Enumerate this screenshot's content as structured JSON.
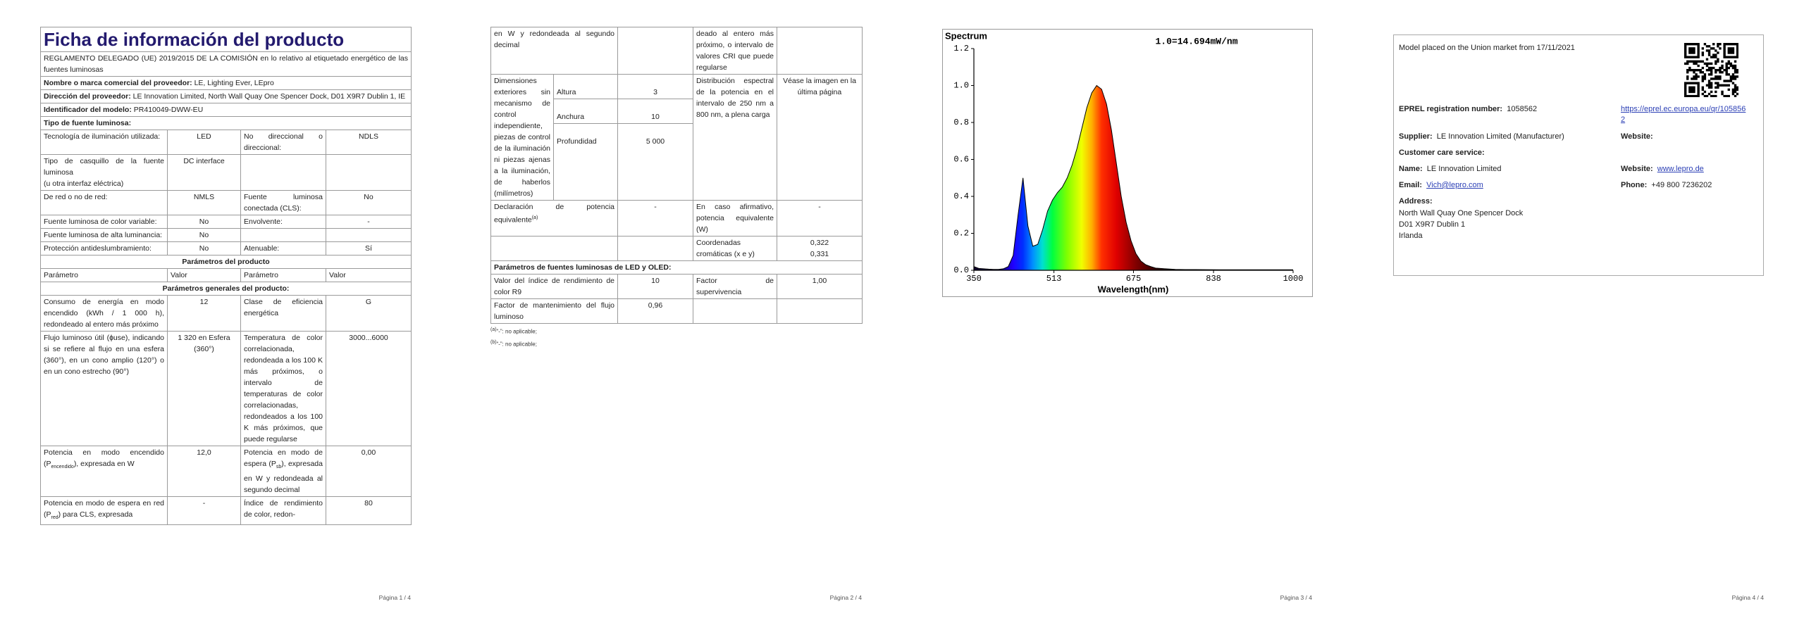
{
  "page1": {
    "title": "Ficha de información del producto",
    "regulation": "REGLAMENTO DELEGADO (UE) 2019/2015 DE LA COMISIÓN en lo relativo al etiquetado energético de las fuentes luminosas",
    "supplier_name": {
      "label": "Nombre o marca comercial del proveedor:",
      "value": "LE, Lighting Ever, LEpro"
    },
    "supplier_address": {
      "label": "Dirección del proveedor:",
      "value": "LE Innovation Limited, North Wall Quay One Spencer Dock, D01 X9R7 Dublin 1, IE"
    },
    "model_id": {
      "label": "Identificador del modelo:",
      "value": "PR410049-DWW-EU"
    },
    "source_type": "Tipo de fuente luminosa:",
    "type_rows": [
      [
        "Tecnología de iluminación utilizada:",
        "LED",
        "No direccional o direccional:",
        "NDLS"
      ],
      [
        "Tipo de casquillo de la fuente luminosa\n(u otra interfaz eléctrica)",
        "DC interface"
      ],
      [
        "De red o no de red:",
        "NMLS",
        "Fuente luminosa conectada (CLS):",
        "No"
      ],
      [
        "Fuente luminosa de color variable:",
        "No",
        "Envolvente:",
        "-"
      ],
      [
        "Fuente luminosa de alta luminancia:",
        "No"
      ],
      [
        "Protección antideslumbramiento:",
        "No",
        "Atenuable:",
        "Sí"
      ]
    ],
    "product_params": "Parámetros del producto",
    "header": [
      "Parámetro",
      "Valor",
      "Parámetro",
      "Valor"
    ],
    "general_params": "Parámetros generales del producto:",
    "general_rows": [
      [
        "Consumo de energía en modo encendido (kWh / 1 000 h), redondeado al entero más próximo",
        "12",
        "Clase de eficiencia energética",
        "G"
      ],
      [
        "Flujo luminoso útil (ɸuse), indicando si se refiere al flujo en una esfera (360°), en un cono amplio (120°) o en un cono estrecho (90°)",
        "1 320 en Esfera (360°)",
        "Temperatura de color correlacionada, redondeada a los 100 K más próximos, o intervalo de temperaturas de color correlacionadas, redondeados a los 100 K más próximos, que puede regularse",
        "3000...6000"
      ],
      [
        [
          "Potencia en modo encendido (P",
          "encendido",
          "), expresada en W"
        ],
        "12,0",
        [
          "Potencia en modo de espera (P",
          "sb",
          "), expresada en W y redondeada al segundo decimal"
        ],
        "0,00"
      ],
      [
        [
          "Potencia en modo de espera en red (P",
          "red",
          ") para CLS, expresada"
        ],
        "-",
        "Índice de rendimiento de color, redon-",
        "80"
      ]
    ],
    "page_label": "Página 1 / 4"
  },
  "page2": {
    "continued": [
      "en W y redondeada al segundo decimal",
      "deado al entero más próximo, o intervalo de valores CRI que puede regularse"
    ],
    "dimensions": {
      "label": "Dimensiones exteriores sin mecanismo de control independiente, piezas de control de la iluminación ni piezas ajenas a la iluminación, de haberlos (milímetros)",
      "parts": [
        [
          "Altura",
          "3"
        ],
        [
          "Anchura",
          "10"
        ],
        [
          "Profundidad",
          "5 000"
        ]
      ],
      "spd_label": "Distribución espectral de la potencia en el intervalo de 250 nm a 800 nm, a plena carga",
      "spd_value": "Véase la imagen en la última página"
    },
    "equivalent": {
      "label": "Declaración de potencia equivalente",
      "note": "(a)",
      "value": "-",
      "if_yes_label": "En caso afirmativo, potencia equivalente (W)",
      "if_yes_value": "-"
    },
    "chromaticity": {
      "label": "Coordenadas cromáticas (x e y)",
      "x": "0,322",
      "y": "0,331"
    },
    "led_params": "Parámetros de fuentes luminosas de LED y OLED:",
    "led_rows": [
      [
        "Valor del índice de rendimiento de color R9",
        "10",
        "Factor de supervivencia",
        "1,00"
      ],
      [
        "Factor de mantenimiento del flujo luminoso",
        "0,96"
      ]
    ],
    "footnotes": [
      [
        "(a)",
        "“-”: no aplicable;"
      ],
      [
        "(b)",
        "“-”: no aplicable;"
      ]
    ],
    "page_label": "Página 2 / 4"
  },
  "spectrum": {
    "type": "area",
    "title": "Spectrum",
    "annotation": "1.0=14.694mW/nm",
    "xlabel": "Wavelength(nm)",
    "x": [
      350,
      360,
      370,
      380,
      390,
      400,
      410,
      420,
      430,
      440,
      450,
      460,
      470,
      480,
      490,
      500,
      510,
      520,
      530,
      540,
      550,
      560,
      570,
      580,
      590,
      600,
      610,
      620,
      630,
      640,
      650,
      660,
      670,
      680,
      690,
      700,
      710,
      720,
      740,
      760,
      780,
      800,
      850,
      900,
      950,
      1000
    ],
    "values": [
      0.02,
      0.01,
      0.008,
      0.006,
      0.005,
      0.005,
      0.008,
      0.02,
      0.08,
      0.3,
      0.5,
      0.24,
      0.13,
      0.14,
      0.22,
      0.32,
      0.38,
      0.42,
      0.45,
      0.5,
      0.57,
      0.66,
      0.77,
      0.88,
      0.96,
      1.0,
      0.98,
      0.9,
      0.76,
      0.58,
      0.4,
      0.26,
      0.16,
      0.09,
      0.05,
      0.03,
      0.02,
      0.012,
      0.008,
      0.005,
      0.004,
      0.004,
      0.003,
      0.003,
      0.003,
      0.003
    ],
    "xlim": [
      350,
      1000
    ],
    "xticks": [
      350,
      513,
      675,
      838,
      1000
    ],
    "ylim": [
      0,
      1.2
    ],
    "yticks": [
      {
        "value": 0,
        "label": "0.0"
      },
      0.2,
      0.4,
      0.6,
      0.8,
      {
        "value": 1,
        "label": "1.0"
      },
      1.2
    ]
  },
  "page3": {
    "page_label": "Página 3 / 4"
  },
  "page4": {
    "placed": "Model placed on the Union market from 17/11/2021",
    "eprel": {
      "label": "EPREL registration number:",
      "value": "1058562",
      "link": "https://eprel.ec.europa.eu/qr/1058562"
    },
    "supplier": {
      "label": "Supplier:",
      "value": "LE Innovation Limited (Manufacturer)"
    },
    "supplier_website": {
      "label": "Website:"
    },
    "customer_care": "Customer care service:",
    "name": {
      "label": "Name:",
      "value": "LE Innovation Limited"
    },
    "website": {
      "label": "Website:",
      "value": "www.lepro.de"
    },
    "email": {
      "label": "Email:",
      "value": "Vich@lepro.com"
    },
    "phone": {
      "label": "Phone:",
      "value": "+49 800 7236202"
    },
    "address": {
      "label": "Address:",
      "lines": [
        "North Wall Quay One Spencer Dock",
        "D01 X9R7 Dublin 1",
        "Irlanda"
      ]
    },
    "page_label": "Página 4 / 4"
  }
}
